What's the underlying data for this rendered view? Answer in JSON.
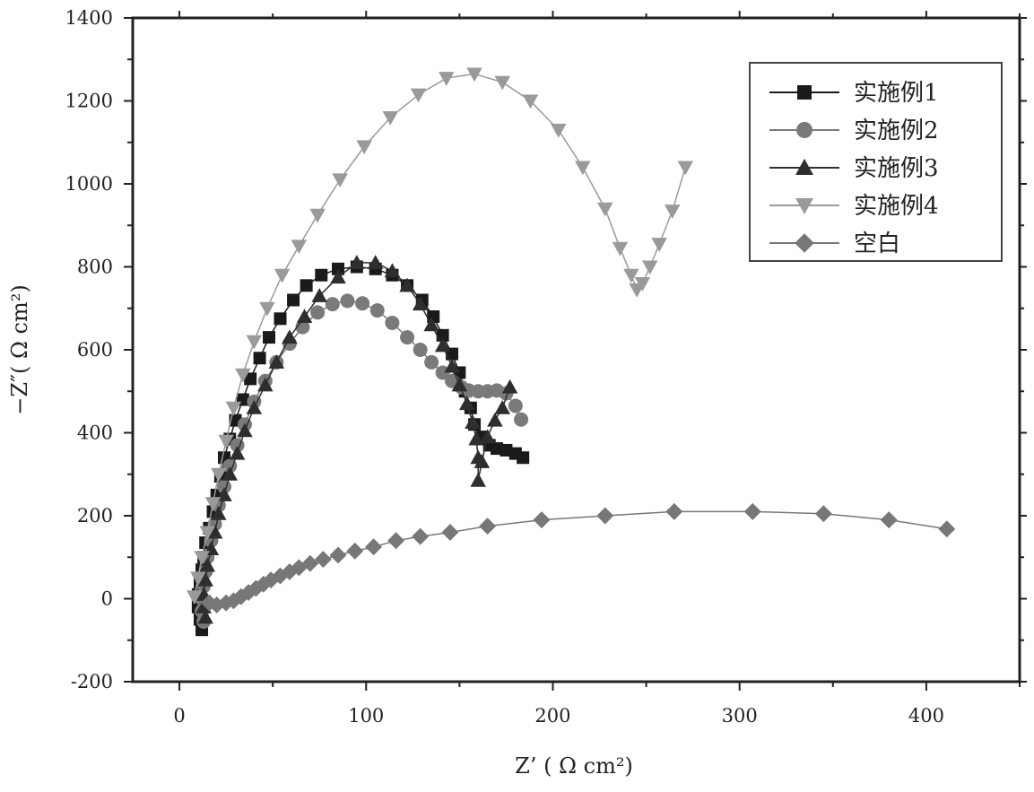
{
  "chart_data": {
    "type": "scatter",
    "xlabel": "Z’ ( Ω  cm²)",
    "ylabel": "−Z″( Ω  cm²)",
    "xlim": [
      -25,
      450
    ],
    "ylim": [
      -200,
      1400
    ],
    "xticks": [
      0,
      100,
      200,
      300,
      400
    ],
    "yticks": [
      -200,
      0,
      200,
      400,
      600,
      800,
      1000,
      1200,
      1400
    ],
    "legend_position": "top-right",
    "series": [
      {
        "name": "实施例1",
        "marker": "square",
        "color": "#1a1a1a",
        "x": [
          12,
          11,
          10,
          10,
          11,
          12,
          13,
          14,
          16,
          18,
          20,
          22,
          24,
          27,
          30,
          34,
          38,
          43,
          48,
          54,
          61,
          68,
          76,
          85,
          95,
          105,
          114,
          122,
          130,
          136,
          141,
          146,
          150,
          153,
          156,
          158,
          162,
          166,
          170,
          175,
          180,
          184
        ],
        "y": [
          -75,
          -50,
          -20,
          10,
          40,
          70,
          100,
          135,
          170,
          210,
          250,
          295,
          340,
          385,
          430,
          480,
          530,
          580,
          630,
          675,
          720,
          755,
          780,
          795,
          800,
          795,
          780,
          755,
          720,
          680,
          635,
          590,
          545,
          500,
          460,
          420,
          390,
          370,
          362,
          358,
          350,
          340
        ]
      },
      {
        "name": "实施例2",
        "marker": "circle",
        "color": "#7a7a7a",
        "x": [
          13,
          12,
          12,
          13,
          14,
          15,
          17,
          19,
          21,
          24,
          27,
          31,
          35,
          40,
          46,
          52,
          59,
          66,
          74,
          82,
          90,
          98,
          106,
          114,
          122,
          129,
          135,
          141,
          146,
          151,
          155,
          160,
          165,
          170,
          175,
          180,
          183
        ],
        "y": [
          -55,
          -30,
          0,
          30,
          65,
          100,
          140,
          180,
          225,
          270,
          320,
          370,
          420,
          475,
          525,
          570,
          615,
          655,
          690,
          710,
          718,
          712,
          695,
          665,
          630,
          600,
          570,
          545,
          525,
          510,
          502,
          500,
          500,
          502,
          495,
          465,
          432
        ]
      },
      {
        "name": "实施例3",
        "marker": "triangle-up",
        "color": "#2e2e2e",
        "x": [
          14,
          13,
          13,
          14,
          15,
          17,
          19,
          21,
          24,
          27,
          31,
          35,
          40,
          46,
          52,
          59,
          67,
          75,
          85,
          95,
          105,
          114,
          122,
          129,
          135,
          141,
          146,
          150,
          154,
          157,
          159,
          160,
          160,
          162,
          165,
          169,
          173,
          177
        ],
        "y": [
          -45,
          -20,
          10,
          45,
          80,
          120,
          160,
          205,
          250,
          300,
          350,
          405,
          460,
          515,
          570,
          630,
          680,
          730,
          775,
          810,
          810,
          790,
          755,
          710,
          660,
          610,
          560,
          515,
          470,
          425,
          385,
          340,
          285,
          330,
          390,
          430,
          460,
          510
        ]
      },
      {
        "name": "实施例4",
        "marker": "triangle-down",
        "color": "#9a9a9a",
        "x": [
          8,
          10,
          12,
          15,
          18,
          21,
          25,
          29,
          34,
          40,
          47,
          55,
          64,
          74,
          86,
          99,
          113,
          128,
          143,
          158,
          173,
          188,
          203,
          216,
          228,
          236,
          242,
          245,
          248,
          252,
          257,
          264,
          271
        ],
        "y": [
          5,
          50,
          100,
          160,
          230,
          300,
          380,
          460,
          540,
          620,
          700,
          780,
          850,
          925,
          1010,
          1090,
          1160,
          1215,
          1255,
          1265,
          1245,
          1200,
          1130,
          1040,
          940,
          845,
          780,
          745,
          760,
          800,
          855,
          935,
          1040
        ]
      },
      {
        "name": "空白",
        "marker": "diamond",
        "color": "#777777",
        "x": [
          16,
          20,
          25,
          29,
          33,
          37,
          41,
          45,
          49,
          54,
          59,
          64,
          70,
          77,
          85,
          94,
          104,
          116,
          129,
          145,
          165,
          194,
          228,
          265,
          307,
          345,
          380,
          411
        ],
        "y": [
          -10,
          -15,
          -10,
          -5,
          5,
          15,
          25,
          35,
          45,
          55,
          65,
          75,
          85,
          95,
          105,
          115,
          125,
          140,
          150,
          160,
          175,
          190,
          200,
          210,
          210,
          205,
          190,
          168
        ]
      }
    ]
  }
}
